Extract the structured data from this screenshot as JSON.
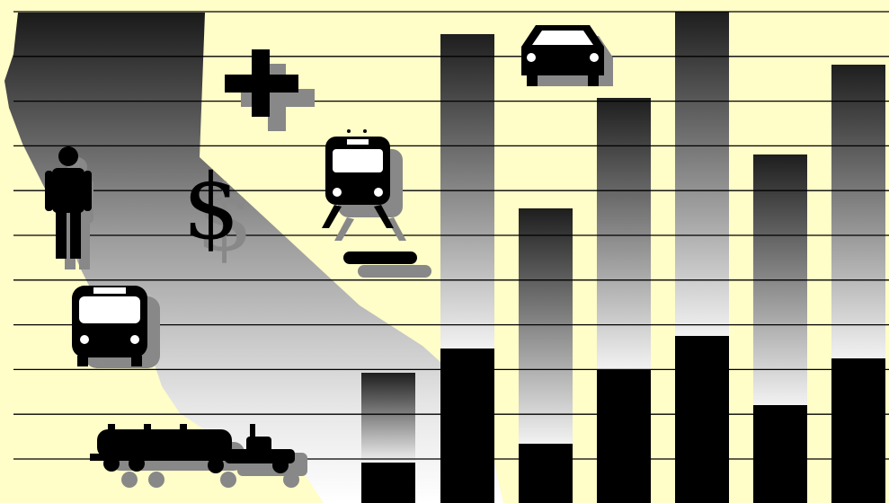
{
  "illustration": {
    "background": "#fffdc8",
    "ink": "#000000",
    "shadow": "#808080",
    "symbols": {
      "currency": "$"
    },
    "icons": [
      "person-icon",
      "bus-icon",
      "tanker-truck-icon",
      "plus-icon",
      "dollar-icon",
      "train-icon",
      "minus-icon",
      "car-icon"
    ],
    "bar_levels": {
      "lower_share": [
        0.31,
        0.33,
        0.2,
        0.33,
        0.34,
        0.28,
        0.33
      ]
    }
  }
}
